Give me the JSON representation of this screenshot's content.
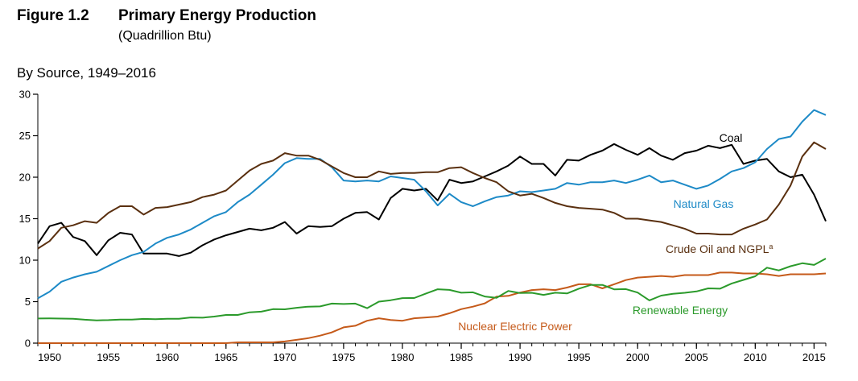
{
  "figure": {
    "number": "Figure 1.2",
    "title": "Primary Energy Production",
    "subtitle": "(Quadrillion Btu)",
    "panel_title": "By Source, 1949–2016"
  },
  "chart_data": {
    "type": "line",
    "title": "Primary Energy Production",
    "subtitle": "(Quadrillion Btu)",
    "panel_title": "By Source, 1949–2016",
    "xlim": [
      1949,
      2016
    ],
    "ylim": [
      0,
      30
    ],
    "x_ticks": [
      1950,
      1955,
      1960,
      1965,
      1970,
      1975,
      1980,
      1985,
      1990,
      1995,
      2000,
      2005,
      2010,
      2015
    ],
    "y_ticks": [
      0,
      5,
      10,
      15,
      20,
      25,
      30
    ],
    "grid": false,
    "legend": "inline labels",
    "x": [
      1949,
      1950,
      1951,
      1952,
      1953,
      1954,
      1955,
      1956,
      1957,
      1958,
      1959,
      1960,
      1961,
      1962,
      1963,
      1964,
      1965,
      1966,
      1967,
      1968,
      1969,
      1970,
      1971,
      1972,
      1973,
      1974,
      1975,
      1976,
      1977,
      1978,
      1979,
      1980,
      1981,
      1982,
      1983,
      1984,
      1985,
      1986,
      1987,
      1988,
      1989,
      1990,
      1991,
      1992,
      1993,
      1994,
      1995,
      1996,
      1997,
      1998,
      1999,
      2000,
      2001,
      2002,
      2003,
      2004,
      2005,
      2006,
      2007,
      2008,
      2009,
      2010,
      2011,
      2012,
      2013,
      2014,
      2015,
      2016
    ],
    "series": [
      {
        "name": "Coal",
        "color": "#000000",
        "values": [
          12.0,
          14.1,
          14.5,
          12.8,
          12.3,
          10.6,
          12.4,
          13.3,
          13.1,
          10.8,
          10.8,
          10.8,
          10.5,
          10.9,
          11.8,
          12.5,
          13.0,
          13.4,
          13.8,
          13.6,
          13.9,
          14.6,
          13.2,
          14.1,
          14.0,
          14.1,
          15.0,
          15.7,
          15.8,
          14.9,
          17.5,
          18.6,
          18.4,
          18.6,
          17.2,
          19.7,
          19.3,
          19.5,
          20.1,
          20.7,
          21.4,
          22.5,
          21.6,
          21.6,
          20.2,
          22.1,
          22.0,
          22.7,
          23.2,
          24.0,
          23.3,
          22.7,
          23.5,
          22.6,
          22.1,
          22.9,
          23.2,
          23.8,
          23.5,
          23.9,
          21.6,
          22.0,
          22.2,
          20.7,
          20.0,
          20.3,
          17.9,
          14.7
        ]
      },
      {
        "name": "Natural Gas",
        "color": "#1d8ac7",
        "values": [
          5.4,
          6.2,
          7.4,
          7.9,
          8.3,
          8.6,
          9.3,
          10.0,
          10.6,
          11.0,
          12.0,
          12.7,
          13.1,
          13.7,
          14.5,
          15.3,
          15.8,
          17.0,
          17.9,
          19.1,
          20.3,
          21.7,
          22.3,
          22.2,
          22.2,
          21.2,
          19.6,
          19.5,
          19.6,
          19.5,
          20.1,
          19.9,
          19.7,
          18.3,
          16.6,
          18.0,
          17.0,
          16.5,
          17.1,
          17.6,
          17.8,
          18.3,
          18.2,
          18.4,
          18.6,
          19.3,
          19.1,
          19.4,
          19.4,
          19.6,
          19.3,
          19.7,
          20.2,
          19.4,
          19.6,
          19.1,
          18.6,
          19.0,
          19.8,
          20.7,
          21.1,
          21.8,
          23.4,
          24.6,
          24.9,
          26.7,
          28.1,
          27.5
        ]
      },
      {
        "name": "Crude Oil and NGPL",
        "name_superscript": "a",
        "color": "#5a3010",
        "values": [
          11.4,
          12.3,
          13.9,
          14.2,
          14.7,
          14.5,
          15.7,
          16.5,
          16.5,
          15.5,
          16.3,
          16.4,
          16.7,
          17.0,
          17.6,
          17.9,
          18.4,
          19.6,
          20.8,
          21.6,
          22.0,
          22.9,
          22.6,
          22.6,
          22.1,
          21.3,
          20.5,
          20.0,
          20.0,
          20.7,
          20.4,
          20.5,
          20.5,
          20.6,
          20.6,
          21.1,
          21.2,
          20.5,
          19.9,
          19.4,
          18.3,
          17.8,
          18.0,
          17.5,
          16.9,
          16.5,
          16.3,
          16.2,
          16.1,
          15.7,
          15.0,
          15.0,
          14.8,
          14.6,
          14.2,
          13.8,
          13.2,
          13.2,
          13.1,
          13.1,
          13.8,
          14.3,
          14.9,
          16.7,
          19.0,
          22.5,
          24.2,
          23.4
        ]
      },
      {
        "name": "Nuclear Electric Power",
        "color": "#c55a1a",
        "values": [
          0.0,
          0.0,
          0.0,
          0.0,
          0.0,
          0.0,
          0.0,
          0.0,
          0.0,
          0.0,
          0.0,
          0.0,
          0.0,
          0.0,
          0.0,
          0.0,
          0.0,
          0.1,
          0.1,
          0.1,
          0.1,
          0.2,
          0.4,
          0.6,
          0.9,
          1.3,
          1.9,
          2.1,
          2.7,
          3.0,
          2.8,
          2.7,
          3.0,
          3.1,
          3.2,
          3.6,
          4.1,
          4.4,
          4.8,
          5.6,
          5.7,
          6.1,
          6.4,
          6.5,
          6.4,
          6.7,
          7.1,
          7.1,
          6.6,
          7.1,
          7.6,
          7.9,
          8.0,
          8.1,
          8.0,
          8.2,
          8.2,
          8.2,
          8.5,
          8.5,
          8.4,
          8.4,
          8.3,
          8.1,
          8.3,
          8.3,
          8.3,
          8.4
        ]
      },
      {
        "name": "Renewable Energy",
        "color": "#2b9a2b",
        "values": [
          2.97,
          2.98,
          2.96,
          2.94,
          2.83,
          2.75,
          2.78,
          2.84,
          2.84,
          2.92,
          2.89,
          2.93,
          2.94,
          3.1,
          3.07,
          3.2,
          3.4,
          3.4,
          3.72,
          3.8,
          4.1,
          4.08,
          4.26,
          4.4,
          4.43,
          4.77,
          4.72,
          4.77,
          4.21,
          5.0,
          5.17,
          5.43,
          5.44,
          5.98,
          6.5,
          6.42,
          6.08,
          6.13,
          5.62,
          5.47,
          6.29,
          6.04,
          6.07,
          5.82,
          6.08,
          5.99,
          6.56,
          7.01,
          7.02,
          6.49,
          6.51,
          6.1,
          5.16,
          5.73,
          5.94,
          6.07,
          6.23,
          6.6,
          6.56,
          7.19,
          7.62,
          8.06,
          9.1,
          8.77,
          9.27,
          9.63,
          9.43,
          10.19
        ]
      }
    ]
  }
}
